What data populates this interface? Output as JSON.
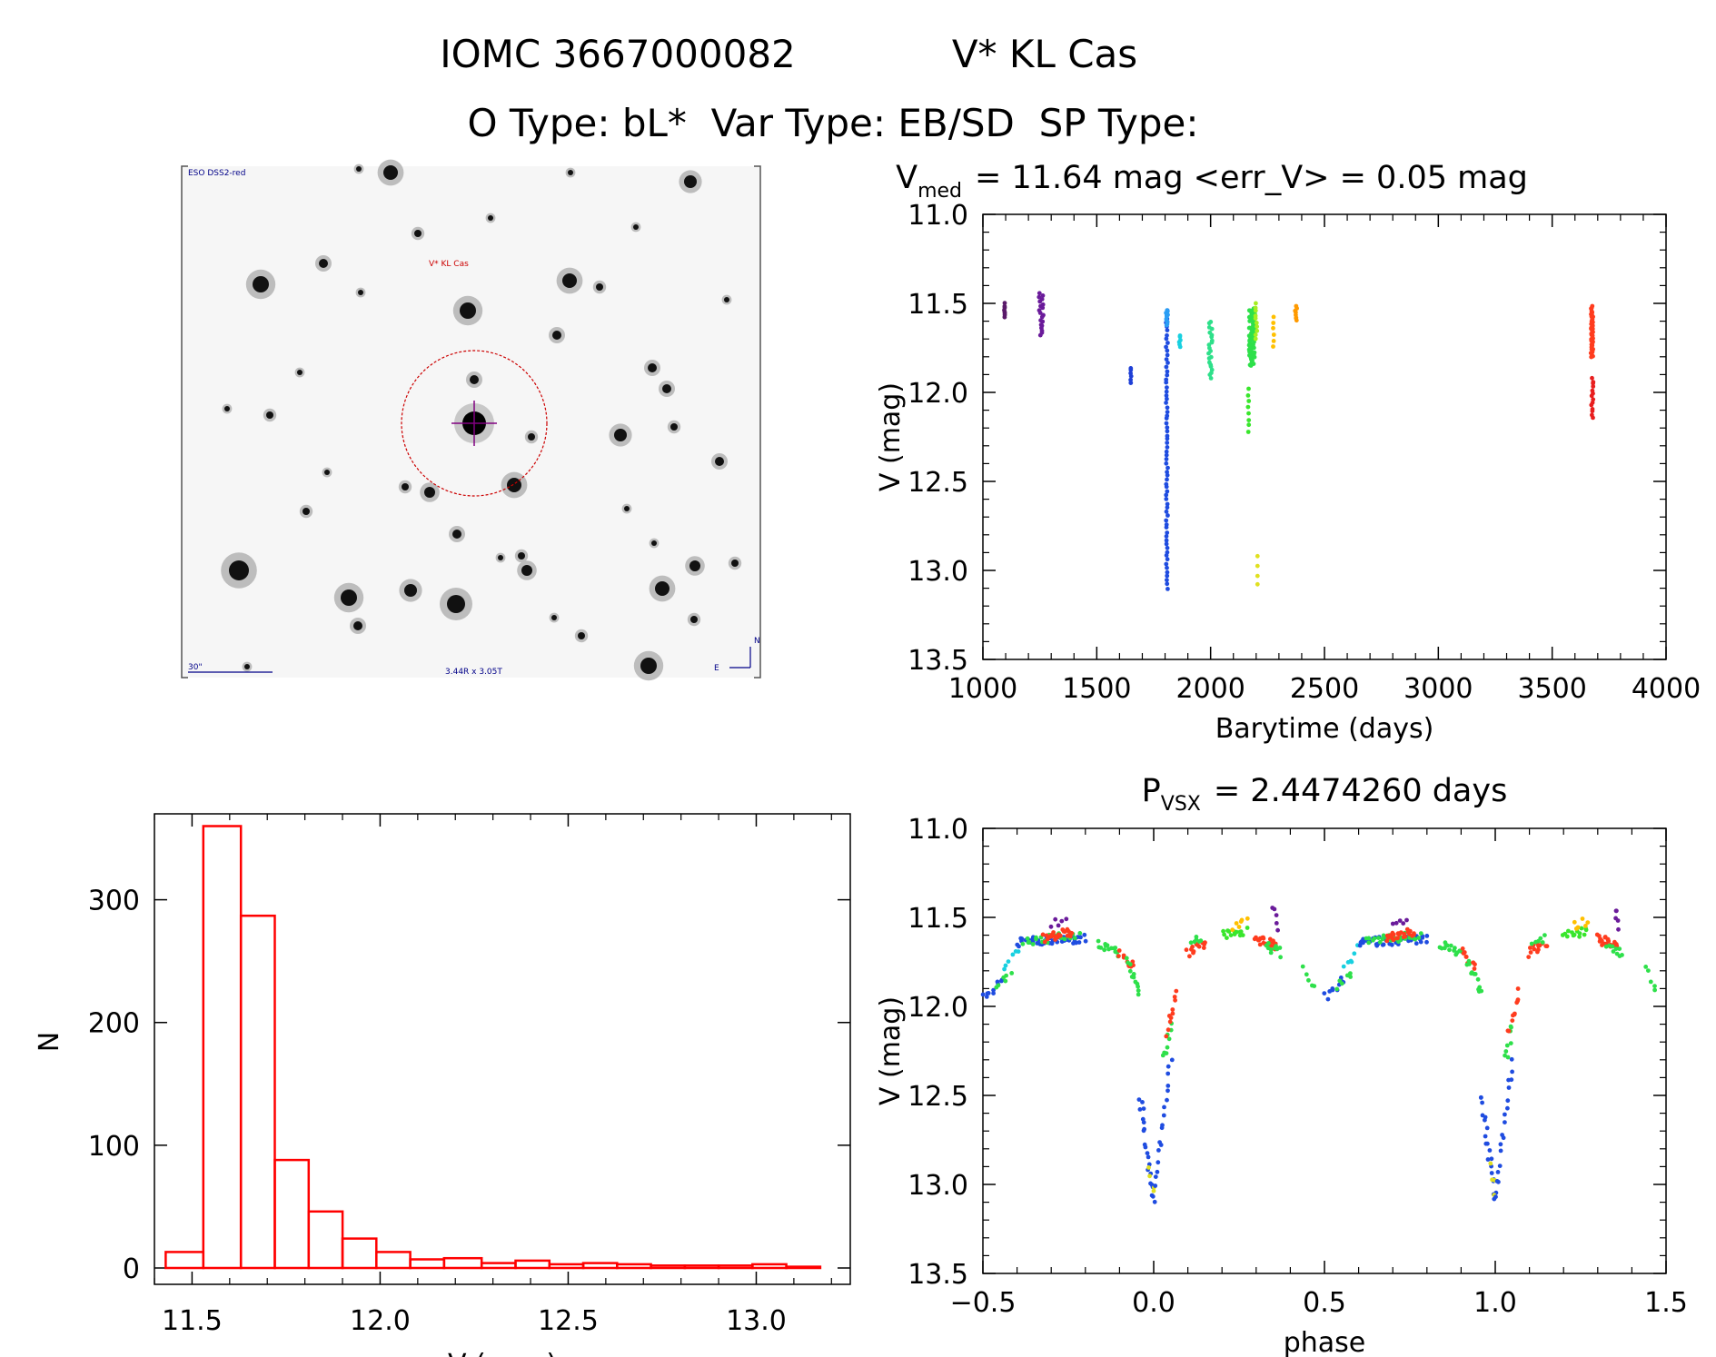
{
  "header": {
    "line1_id": "IOMC 3667000082",
    "line1_name": "V* KL Cas",
    "line2": "O Type: bL*  Var Type: EB/SD  SP Type:"
  },
  "finder": {
    "survey_label": "ESO DSS2-red",
    "target_label": "V* KL Cas",
    "scale_label": "30\"",
    "size_label": "3.44R x 3.05T",
    "compass_n": "N",
    "compass_e": "E",
    "colors": {
      "target": "#cc0000",
      "marker": "#800080",
      "annotation": "#000088"
    }
  },
  "chart_data": [
    {
      "id": "lightcurve",
      "type": "scatter",
      "title_main": "V",
      "title_sub": "med",
      "title_rest": "= 11.64 mag <err_V> = 0.05 mag",
      "xlabel": "Barytime (days)",
      "ylabel": "V (mag)",
      "xlim": [
        1000,
        4000
      ],
      "ylim": [
        11.0,
        13.5
      ],
      "y_inverted": true,
      "xticks": [
        1000,
        1500,
        2000,
        2500,
        3000,
        3500,
        4000
      ],
      "xtick_labels": [
        "1000",
        "1500",
        "2000",
        "2500",
        "3000",
        "3500",
        "4000"
      ],
      "yticks": [
        11.0,
        11.5,
        12.0,
        12.5,
        13.0,
        13.5
      ],
      "ytick_labels": [
        "11.0",
        "11.5",
        "12.0",
        "12.5",
        "13.0",
        "13.5"
      ],
      "groups": [
        {
          "t": 1095,
          "dt": 4,
          "vmin": 11.5,
          "vmax": 11.58,
          "n": 8,
          "color": "#5a1a6a"
        },
        {
          "t": 1255,
          "dt": 22,
          "vmin": 11.44,
          "vmax": 11.68,
          "n": 20,
          "color": "#6a1b9a"
        },
        {
          "t": 1650,
          "dt": 6,
          "vmin": 11.86,
          "vmax": 11.95,
          "n": 6,
          "color": "#1e3fd6"
        },
        {
          "t": 1808,
          "dt": 8,
          "vmin": 11.54,
          "vmax": 13.1,
          "n": 70,
          "color": "#1f4ce0"
        },
        {
          "t": 1808,
          "dt": 8,
          "vmin": 11.54,
          "vmax": 11.62,
          "n": 12,
          "color": "#2a9df4"
        },
        {
          "t": 1865,
          "dt": 6,
          "vmin": 11.68,
          "vmax": 11.74,
          "n": 6,
          "color": "#18d0e0"
        },
        {
          "t": 2000,
          "dt": 20,
          "vmin": 11.6,
          "vmax": 11.92,
          "n": 22,
          "color": "#2ee08a"
        },
        {
          "t": 2182,
          "dt": 26,
          "vmin": 11.53,
          "vmax": 11.85,
          "n": 70,
          "color": "#2ee04a"
        },
        {
          "t": 2165,
          "dt": 6,
          "vmin": 11.98,
          "vmax": 12.22,
          "n": 8,
          "color": "#39e62c"
        },
        {
          "t": 2200,
          "dt": 8,
          "vmin": 11.5,
          "vmax": 11.7,
          "n": 10,
          "color": "#a6ee22"
        },
        {
          "t": 2205,
          "dt": 4,
          "vmin": 12.92,
          "vmax": 13.08,
          "n": 4,
          "color": "#e0e020"
        },
        {
          "t": 2275,
          "dt": 6,
          "vmin": 11.58,
          "vmax": 11.74,
          "n": 6,
          "color": "#ffc000"
        },
        {
          "t": 2375,
          "dt": 8,
          "vmin": 11.52,
          "vmax": 11.6,
          "n": 8,
          "color": "#ff9a00"
        },
        {
          "t": 3675,
          "dt": 10,
          "vmin": 11.52,
          "vmax": 11.8,
          "n": 45,
          "color": "#ff3c1e"
        },
        {
          "t": 3675,
          "dt": 10,
          "vmin": 11.92,
          "vmax": 12.14,
          "n": 14,
          "color": "#e81e1e"
        }
      ]
    },
    {
      "id": "histogram",
      "type": "bar",
      "title": "",
      "xlabel": "V (mag)",
      "ylabel": "N",
      "xlim": [
        11.4,
        13.25
      ],
      "ylim": [
        0,
        370
      ],
      "bin_edges": [
        11.43,
        11.53,
        11.63,
        11.72,
        11.81,
        11.9,
        11.99,
        12.08,
        12.17,
        12.27,
        12.36,
        12.45,
        12.54,
        12.63,
        12.72,
        12.81,
        12.9,
        12.99,
        13.08,
        13.17
      ],
      "values": [
        13,
        360,
        287,
        88,
        46,
        24,
        13,
        7,
        8,
        4,
        6,
        3,
        4,
        3,
        2,
        2,
        2,
        3,
        1
      ],
      "xticks": [
        11.5,
        12.0,
        12.5,
        13.0
      ],
      "xtick_labels": [
        "11.5",
        "12.0",
        "12.5",
        "13.0"
      ],
      "yticks": [
        0,
        100,
        200,
        300
      ],
      "ytick_labels": [
        "0",
        "100",
        "200",
        "300"
      ],
      "bar_color": "#ff0000"
    },
    {
      "id": "phased",
      "type": "scatter",
      "title_main": "P",
      "title_sub": "VSX",
      "title_rest": "= 2.4474260 days",
      "xlabel": "phase",
      "ylabel": "V (mag)",
      "xlim": [
        -0.5,
        1.5
      ],
      "ylim": [
        11.0,
        13.5
      ],
      "y_inverted": true,
      "xticks": [
        -0.5,
        0.0,
        0.5,
        1.0,
        1.5
      ],
      "xtick_labels": [
        "−0.5",
        "0.0",
        "0.5",
        "1.0",
        "1.5"
      ],
      "yticks": [
        11.0,
        11.5,
        12.0,
        12.5,
        13.0,
        13.5
      ],
      "ytick_labels": [
        "11.0",
        "11.5",
        "12.0",
        "12.5",
        "13.0",
        "13.5"
      ],
      "period_days": 2.447426,
      "segments": [
        {
          "p0": -0.5,
          "p1": -0.44,
          "v0": 11.95,
          "v1": 11.85,
          "n": 10,
          "color": "#1f4ce0"
        },
        {
          "p0": -0.46,
          "p1": -0.42,
          "v0": 11.9,
          "v1": 11.8,
          "n": 6,
          "color": "#2ee04a"
        },
        {
          "p0": -0.44,
          "p1": -0.4,
          "v0": 11.8,
          "v1": 11.68,
          "n": 6,
          "color": "#18d0e0"
        },
        {
          "p0": -0.4,
          "p1": -0.2,
          "v0": 11.64,
          "v1": 11.62,
          "n": 45,
          "color": "#1f4ce0"
        },
        {
          "p0": -0.38,
          "p1": -0.22,
          "v0": 11.64,
          "v1": 11.6,
          "n": 25,
          "color": "#2ee04a"
        },
        {
          "p0": -0.32,
          "p1": -0.24,
          "v0": 11.62,
          "v1": 11.58,
          "n": 25,
          "color": "#ff3c1e"
        },
        {
          "p0": -0.3,
          "p1": -0.26,
          "v0": 11.54,
          "v1": 11.52,
          "n": 5,
          "color": "#6a1b9a"
        },
        {
          "p0": -0.16,
          "p1": -0.1,
          "v0": 11.65,
          "v1": 11.7,
          "n": 14,
          "color": "#2ee04a"
        },
        {
          "p0": -0.1,
          "p1": -0.06,
          "v0": 11.7,
          "v1": 11.78,
          "n": 10,
          "color": "#ff3c1e"
        },
        {
          "p0": -0.08,
          "p1": -0.04,
          "v0": 11.75,
          "v1": 11.92,
          "n": 12,
          "color": "#2ee04a"
        },
        {
          "p0": -0.04,
          "p1": 0.0,
          "v0": 12.5,
          "v1": 13.1,
          "n": 20,
          "color": "#1f4ce0"
        },
        {
          "p0": -0.01,
          "p1": 0.0,
          "v0": 12.9,
          "v1": 13.05,
          "n": 4,
          "color": "#e0e020"
        },
        {
          "p0": 0.0,
          "p1": 0.05,
          "v0": 13.05,
          "v1": 12.3,
          "n": 18,
          "color": "#1f4ce0"
        },
        {
          "p0": 0.03,
          "p1": 0.05,
          "v0": 12.3,
          "v1": 12.1,
          "n": 8,
          "color": "#2ee04a"
        },
        {
          "p0": 0.04,
          "p1": 0.07,
          "v0": 12.15,
          "v1": 11.92,
          "n": 10,
          "color": "#ff3c1e"
        },
        {
          "p0": 0.1,
          "p1": 0.15,
          "v0": 11.7,
          "v1": 11.64,
          "n": 14,
          "color": "#ff3c1e"
        },
        {
          "p0": 0.11,
          "p1": 0.14,
          "v0": 11.64,
          "v1": 11.62,
          "n": 6,
          "color": "#2ee04a"
        },
        {
          "p0": 0.2,
          "p1": 0.27,
          "v0": 11.6,
          "v1": 11.58,
          "n": 14,
          "color": "#39e62c"
        },
        {
          "p0": 0.23,
          "p1": 0.27,
          "v0": 11.55,
          "v1": 11.52,
          "n": 6,
          "color": "#ffc000"
        },
        {
          "p0": 0.3,
          "p1": 0.36,
          "v0": 11.62,
          "v1": 11.66,
          "n": 22,
          "color": "#ff3c1e"
        },
        {
          "p0": 0.33,
          "p1": 0.37,
          "v0": 11.66,
          "v1": 11.7,
          "n": 10,
          "color": "#2ee04a"
        },
        {
          "p0": 0.35,
          "p1": 0.36,
          "v0": 11.45,
          "v1": 11.55,
          "n": 5,
          "color": "#6a1b9a"
        },
        {
          "p0": 0.44,
          "p1": 0.47,
          "v0": 11.78,
          "v1": 11.9,
          "n": 5,
          "color": "#2ee04a"
        }
      ]
    }
  ]
}
